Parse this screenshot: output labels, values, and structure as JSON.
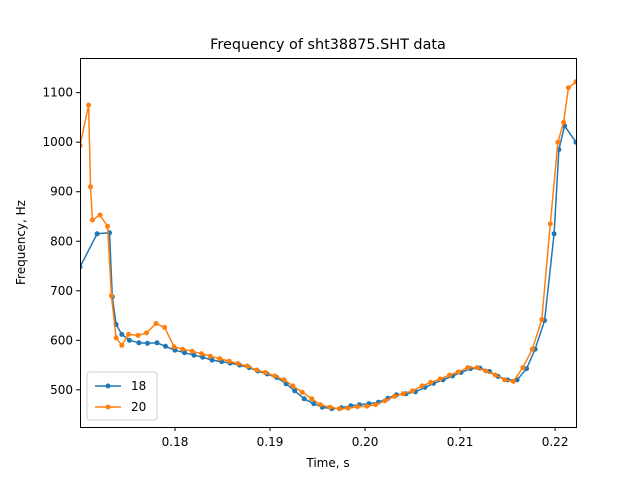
{
  "chart_data": {
    "type": "line",
    "title": "Frequency of sht38875.SHT data",
    "xlabel": "Time, s",
    "ylabel": "Frequency, Hz",
    "xlim": [
      0.17,
      0.2222
    ],
    "ylim": [
      425,
      1170
    ],
    "grid": false,
    "legend_position": "lower-left",
    "x_ticks": [
      {
        "value": 0.18,
        "label": "0.18"
      },
      {
        "value": 0.19,
        "label": "0.19"
      },
      {
        "value": 0.2,
        "label": "0.20"
      },
      {
        "value": 0.21,
        "label": "0.21"
      },
      {
        "value": 0.22,
        "label": "0.22"
      }
    ],
    "y_ticks": [
      {
        "value": 500,
        "label": "500"
      },
      {
        "value": 600,
        "label": "600"
      },
      {
        "value": 700,
        "label": "700"
      },
      {
        "value": 800,
        "label": "800"
      },
      {
        "value": 900,
        "label": "900"
      },
      {
        "value": 1000,
        "label": "1000"
      },
      {
        "value": 1100,
        "label": "1100"
      }
    ],
    "series": [
      {
        "name": "18",
        "color": "#1f77b4",
        "x": [
          0.17,
          0.1718,
          0.1731,
          0.1734,
          0.1738,
          0.1744,
          0.1752,
          0.1762,
          0.1771,
          0.1781,
          0.179,
          0.18,
          0.181,
          0.182,
          0.1829,
          0.1839,
          0.1849,
          0.1858,
          0.1868,
          0.1878,
          0.1887,
          0.1897,
          0.1907,
          0.1917,
          0.1926,
          0.1936,
          0.1946,
          0.1955,
          0.1965,
          0.1975,
          0.1985,
          0.1994,
          0.2004,
          0.2014,
          0.2024,
          0.2033,
          0.2043,
          0.2053,
          0.2063,
          0.2072,
          0.2082,
          0.2092,
          0.2101,
          0.2111,
          0.2121,
          0.2131,
          0.214,
          0.215,
          0.216,
          0.217,
          0.2179,
          0.2189,
          0.2199,
          0.2204,
          0.221,
          0.2222
        ],
        "y": [
          748,
          815,
          817,
          688,
          632,
          612,
          600,
          595,
          594,
          595,
          588,
          580,
          575,
          570,
          566,
          560,
          557,
          554,
          550,
          545,
          538,
          532,
          525,
          512,
          498,
          482,
          472,
          465,
          462,
          464,
          468,
          470,
          472,
          475,
          483,
          490,
          492,
          496,
          505,
          513,
          520,
          528,
          535,
          543,
          544,
          537,
          527,
          520,
          520,
          543,
          582,
          640,
          815,
          985,
          1033,
          1000
        ]
      },
      {
        "name": "20",
        "color": "#ff7f0e",
        "x": [
          0.17,
          0.1709,
          0.1711,
          0.1713,
          0.1721,
          0.1729,
          0.1733,
          0.1738,
          0.1744,
          0.1751,
          0.1761,
          0.177,
          0.178,
          0.1789,
          0.1799,
          0.1808,
          0.1818,
          0.1828,
          0.1837,
          0.1847,
          0.1857,
          0.1866,
          0.1876,
          0.1886,
          0.1895,
          0.1905,
          0.1915,
          0.1924,
          0.1934,
          0.1944,
          0.1953,
          0.1963,
          0.1973,
          0.1982,
          0.1992,
          0.2002,
          0.2011,
          0.2021,
          0.2031,
          0.204,
          0.205,
          0.206,
          0.2069,
          0.2079,
          0.2089,
          0.2098,
          0.2108,
          0.2118,
          0.2127,
          0.2137,
          0.2147,
          0.2156,
          0.2166,
          0.2176,
          0.2186,
          0.2195,
          0.2203,
          0.2209,
          0.2214,
          0.2222
        ],
        "y": [
          993,
          1075,
          910,
          843,
          853,
          830,
          690,
          605,
          590,
          612,
          610,
          615,
          634,
          626,
          587,
          582,
          578,
          573,
          568,
          563,
          558,
          553,
          548,
          540,
          535,
          528,
          520,
          508,
          495,
          482,
          470,
          465,
          462,
          463,
          466,
          467,
          470,
          478,
          487,
          492,
          498,
          508,
          515,
          522,
          530,
          536,
          545,
          545,
          538,
          530,
          520,
          517,
          545,
          582,
          642,
          835,
          1000,
          1040,
          1110,
          1122
        ]
      }
    ]
  }
}
